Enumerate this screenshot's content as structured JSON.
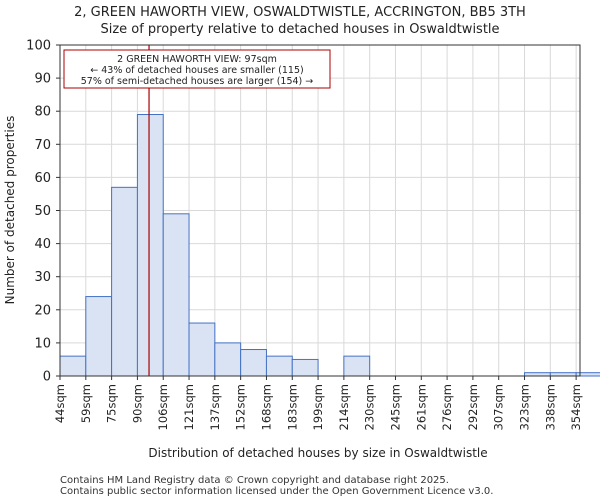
{
  "chart_data": {
    "type": "bar",
    "title": "2, GREEN HAWORTH VIEW, OSWALDTWISTLE, ACCRINGTON, BB5 3TH",
    "subtitle": "Size of property relative to detached houses in Oswaldtwistle",
    "xlabel": "Distribution of detached houses by size in Oswaldtwistle",
    "ylabel": "Number of detached properties",
    "ylim": [
      0,
      100
    ],
    "yticks": [
      0,
      10,
      20,
      30,
      40,
      50,
      60,
      70,
      80,
      90,
      100
    ],
    "categories": [
      "44sqm",
      "59sqm",
      "75sqm",
      "90sqm",
      "106sqm",
      "121sqm",
      "137sqm",
      "152sqm",
      "168sqm",
      "183sqm",
      "199sqm",
      "214sqm",
      "230sqm",
      "245sqm",
      "261sqm",
      "276sqm",
      "292sqm",
      "307sqm",
      "323sqm",
      "338sqm",
      "354sqm"
    ],
    "values": [
      6,
      24,
      57,
      79,
      49,
      16,
      10,
      8,
      6,
      5,
      0,
      6,
      0,
      0,
      0,
      0,
      0,
      0,
      1,
      1,
      1
    ],
    "marker": {
      "value_sqm": 97,
      "bin_position": 3.45,
      "color": "#aa0000"
    },
    "annotation": {
      "lines": [
        "2 GREEN HAWORTH VIEW: 97sqm",
        "← 43% of detached houses are smaller (115)",
        "57% of semi-detached houses are larger (154) →"
      ]
    },
    "bar_fill": "#dae3f3",
    "bar_edge": "#4472c4",
    "grid_color": "#d9d9d9",
    "grid": true
  },
  "footer": {
    "line1": "Contains HM Land Registry data © Crown copyright and database right 2025.",
    "line2": "Contains public sector information licensed under the Open Government Licence v3.0."
  }
}
